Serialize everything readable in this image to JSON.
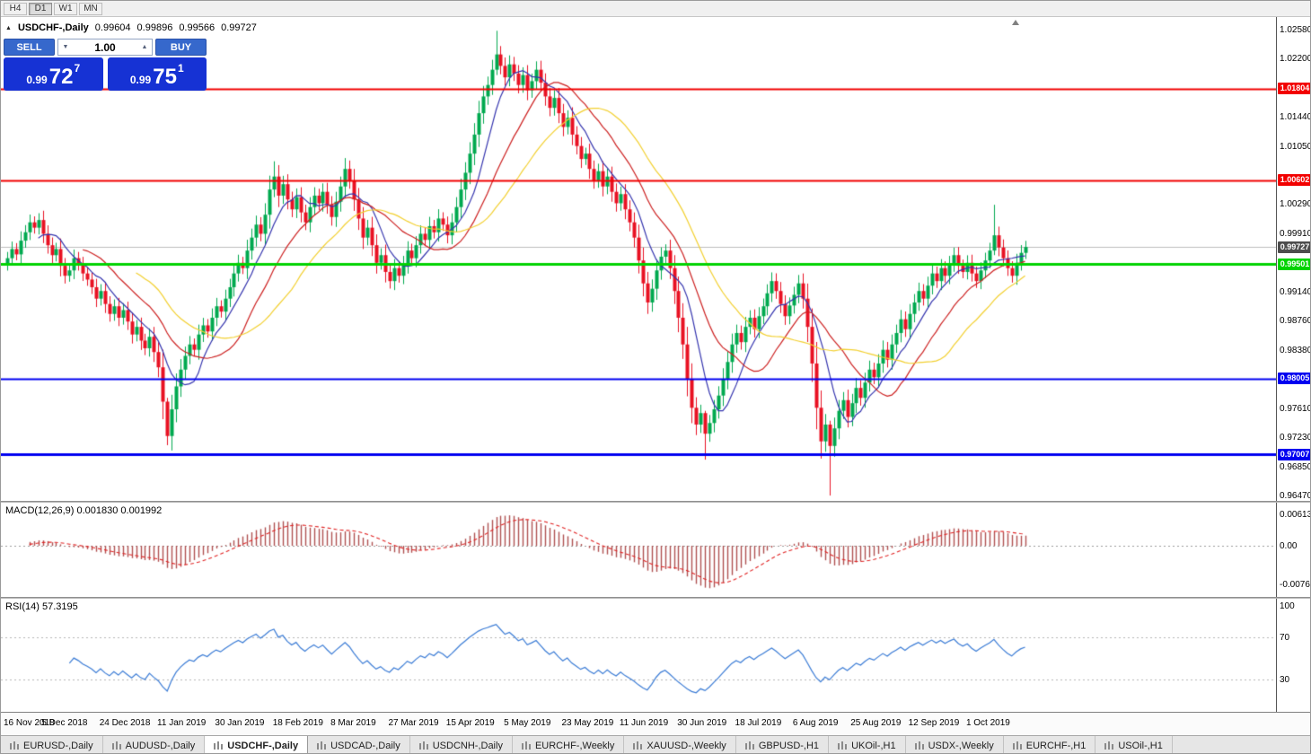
{
  "toolbar": {
    "timeframes": [
      "H4",
      "D1",
      "W1",
      "MN"
    ],
    "active": "D1"
  },
  "chart": {
    "info": {
      "symbol": "USDCHF-,Daily",
      "open": "0.99604",
      "high": "0.99896",
      "low": "0.99566",
      "close": "0.99727"
    },
    "trade_panel": {
      "sell_label": "SELL",
      "buy_label": "BUY",
      "volume": "1.00",
      "sell_price": {
        "prefix": "0.99",
        "big": "72",
        "sup": "7"
      },
      "buy_price": {
        "prefix": "0.99",
        "big": "75",
        "sup": "1"
      }
    },
    "axis_ticks": [
      "1.02580",
      "1.02200",
      "1.01440",
      "1.01050",
      "1.00290",
      "0.99910",
      "0.99140",
      "0.98760",
      "0.98380",
      "0.97610",
      "0.97230",
      "0.96850",
      "0.96470"
    ],
    "levels": [
      {
        "label": "1.01804",
        "value": 1.01804,
        "color": "#f20000",
        "width": 2
      },
      {
        "label": "1.00602",
        "value": 1.00602,
        "color": "#f20000",
        "width": 2
      },
      {
        "label": "0.99501",
        "value": 0.99501,
        "color": "#00d300",
        "width": 3
      },
      {
        "label": "0.98005",
        "value": 0.98005,
        "color": "#0000f0",
        "width": 2
      },
      {
        "label": "0.97007",
        "value": 0.97007,
        "color": "#0000f0",
        "width": 3
      }
    ],
    "current_price": {
      "label": "0.99727",
      "value": 0.99727,
      "badge_color": "#4d4d4d",
      "line_color": "#bcbcbc"
    }
  },
  "macd": {
    "label": "MACD(12,26,9) 0.001830 0.001992",
    "fast": 12,
    "slow": 26,
    "signal": 9,
    "axis": [
      {
        "label": "0.00613",
        "value": 0.00613
      },
      {
        "label": "0.00",
        "value": 0
      },
      {
        "label": "-0.00761",
        "value": -0.00761
      }
    ],
    "hist_color": "#b05050",
    "signal_color": "#e02020"
  },
  "rsi": {
    "label": "RSI(14) 57.3195",
    "period": 14,
    "levels": [
      70,
      30
    ],
    "axis": [
      {
        "label": "100",
        "value": 100
      },
      {
        "label": "70",
        "value": 70
      },
      {
        "label": "30",
        "value": 30
      }
    ],
    "line_color": "#3a7bd5"
  },
  "tabs": [
    {
      "label": "EURUSD-,Daily",
      "active": false
    },
    {
      "label": "AUDUSD-,Daily",
      "active": false
    },
    {
      "label": "USDCHF-,Daily",
      "active": true
    },
    {
      "label": "USDCAD-,Daily",
      "active": false
    },
    {
      "label": "USDCNH-,Daily",
      "active": false
    },
    {
      "label": "EURCHF-,Weekly",
      "active": false
    },
    {
      "label": "XAUUSD-,Weekly",
      "active": false
    },
    {
      "label": "GBPUSD-,H1",
      "active": false
    },
    {
      "label": "UKOil-,H1",
      "active": false
    },
    {
      "label": "USDX-,Weekly",
      "active": false
    },
    {
      "label": "EURCHF-,H1",
      "active": false
    },
    {
      "label": "USOil-,H1",
      "active": false
    }
  ],
  "chart_data": [
    {
      "type": "candlestick",
      "title": "USDCHF-,Daily",
      "ylim": [
        0.964,
        1.0274
      ],
      "up_color": "#00a94f",
      "down_color": "#e81123",
      "x_labels": [
        "16 Nov 2018",
        "5 Dec 2018",
        "24 Dec 2018",
        "11 Jan 2019",
        "30 Jan 2019",
        "18 Feb 2019",
        "8 Mar 2019",
        "27 Mar 2019",
        "15 Apr 2019",
        "5 May 2019",
        "23 May 2019",
        "11 Jun 2019",
        "30 Jun 2019",
        "18 Jul 2019",
        "6 Aug 2019",
        "25 Aug 2019",
        "12 Sep 2019",
        "1 Oct 2019"
      ],
      "bars_per_label": 13,
      "first_open": 0.995,
      "closes": [
        0.9958,
        0.997,
        0.9963,
        0.9981,
        0.9992,
        1.0005,
        0.9998,
        1.0008,
        0.999,
        0.9975,
        0.9962,
        0.997,
        0.9948,
        0.9935,
        0.9942,
        0.9958,
        0.995,
        0.9938,
        0.993,
        0.992,
        0.9905,
        0.9915,
        0.9898,
        0.9885,
        0.9895,
        0.988,
        0.989,
        0.9875,
        0.9858,
        0.9868,
        0.985,
        0.984,
        0.9855,
        0.9835,
        0.9815,
        0.977,
        0.9725,
        0.976,
        0.979,
        0.9812,
        0.983,
        0.9845,
        0.9838,
        0.9858,
        0.987,
        0.9862,
        0.988,
        0.9895,
        0.9888,
        0.9905,
        0.992,
        0.9938,
        0.9952,
        0.9945,
        0.9968,
        0.9985,
        1.0002,
        0.999,
        1.0015,
        1.0048,
        1.0065,
        1.004,
        1.0055,
        1.0035,
        1.0022,
        1.0038,
        1.0018,
        1.0005,
        1.0025,
        1.004,
        1.003,
        1.0045,
        1.0028,
        1.0012,
        1.0032,
        1.0052,
        1.0075,
        1.006,
        1.0035,
        1.001,
        0.9985,
        0.9998,
        0.9975,
        0.9952,
        0.9962,
        0.994,
        0.9928,
        0.9945,
        0.9935,
        0.995,
        0.9968,
        0.9958,
        0.9975,
        0.999,
        0.9982,
        1.0,
        0.9992,
        1.001,
        1.0002,
        0.9988,
        1.0005,
        1.0025,
        1.0048,
        1.007,
        1.0095,
        1.012,
        1.0148,
        1.017,
        1.0185,
        1.0205,
        1.0225,
        1.021,
        1.0195,
        1.0212,
        1.02,
        1.0185,
        1.0198,
        1.0178,
        1.019,
        1.0205,
        1.0188,
        1.017,
        1.0155,
        1.0168,
        1.0148,
        1.013,
        1.0142,
        1.012,
        1.0105,
        1.0088,
        1.0095,
        1.0075,
        1.006,
        1.0072,
        1.0052,
        1.0065,
        1.0045,
        1.003,
        1.0042,
        1.0022,
        1.0005,
        0.9985,
        0.9955,
        0.9925,
        0.99,
        0.9918,
        0.9942,
        0.996,
        0.9968,
        0.9945,
        0.9915,
        0.988,
        0.9845,
        0.98,
        0.9762,
        0.974,
        0.9755,
        0.9728,
        0.9742,
        0.976,
        0.9778,
        0.98,
        0.9822,
        0.9845,
        0.986,
        0.9848,
        0.9868,
        0.988,
        0.9865,
        0.9882,
        0.9895,
        0.9912,
        0.9928,
        0.9915,
        0.9898,
        0.9882,
        0.9896,
        0.991,
        0.9925,
        0.9905,
        0.9868,
        0.982,
        0.9762,
        0.9718,
        0.974,
        0.9712,
        0.9735,
        0.9758,
        0.9772,
        0.975,
        0.9768,
        0.9788,
        0.9775,
        0.9795,
        0.9812,
        0.9802,
        0.982,
        0.9838,
        0.9825,
        0.9845,
        0.986,
        0.9878,
        0.9865,
        0.9885,
        0.99,
        0.9915,
        0.9905,
        0.9922,
        0.9938,
        0.9928,
        0.9945,
        0.9935,
        0.995,
        0.9962,
        0.9948,
        0.994,
        0.9952,
        0.9938,
        0.9928,
        0.9942,
        0.9955,
        0.9968,
        0.9988,
        0.9972,
        0.9958,
        0.9945,
        0.9935,
        0.9952,
        0.9965,
        0.99727
      ],
      "wick_overrides": {
        "36": [
          0.9775,
          0.9713
        ],
        "60": [
          1.0085,
          1.0038
        ],
        "110": [
          1.0256,
          1.0198
        ],
        "157": [
          0.9758,
          0.9694
        ],
        "185": [
          0.9745,
          0.9647
        ],
        "222": [
          1.0028,
          0.9962
        ]
      },
      "moving_averages": [
        {
          "period": 8,
          "color": "#3434ae"
        },
        {
          "period": 18,
          "color": "#cc1f1f"
        },
        {
          "period": 30,
          "color": "#f2cf2e"
        }
      ],
      "horizontal_levels": [
        1.01804,
        1.00602,
        0.99501,
        0.98005,
        0.97007
      ],
      "last_close": 0.99727
    },
    {
      "type": "macd",
      "params": [
        12,
        26,
        9
      ],
      "current_values": [
        0.00183,
        0.001992
      ],
      "ylim": [
        -0.0102,
        0.0084
      ]
    },
    {
      "type": "rsi",
      "period": 14,
      "current_value": 57.3195,
      "ylim": [
        0,
        100
      ],
      "levels": [
        70,
        30
      ]
    }
  ]
}
